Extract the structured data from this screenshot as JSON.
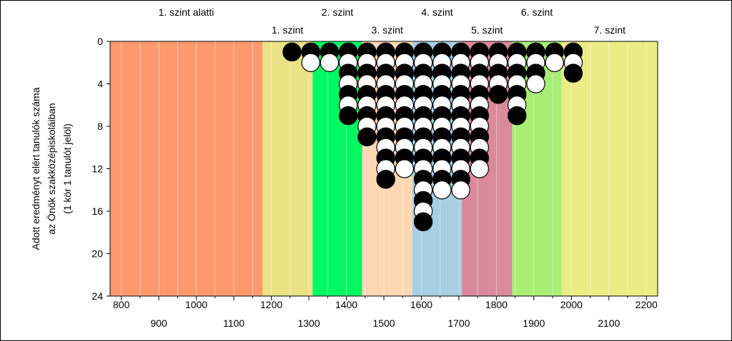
{
  "chart_data": {
    "type": "scatter",
    "ylabel_lines": [
      "Adott eredményt elért tanulók száma",
      "az Önök szakközépiskoláiban",
      "(1 kör 1 tanulót jelöl)"
    ],
    "xlim": [
      770,
      2230
    ],
    "ylim": [
      0,
      24
    ],
    "y_inverted": true,
    "y_ticks": [
      0,
      4,
      8,
      12,
      16,
      20,
      24
    ],
    "x_ticks_row1": [
      800,
      1000,
      1200,
      1400,
      1600,
      1800,
      2000,
      2200
    ],
    "x_ticks_row2": [
      900,
      1100,
      1300,
      1500,
      1700,
      1900,
      2100
    ],
    "bands": [
      {
        "label": "1. szint alatti",
        "from": 770,
        "to": 1176,
        "color": "#fe9a6e",
        "label_row": "upper"
      },
      {
        "label": "1. szint",
        "from": 1176,
        "to": 1310,
        "color": "#ebe286",
        "label_row": "lower"
      },
      {
        "label": "2. szint",
        "from": 1310,
        "to": 1442,
        "color": "#00f862",
        "label_row": "upper"
      },
      {
        "label": "3. szint",
        "from": 1442,
        "to": 1576,
        "color": "#fed7b4",
        "label_row": "lower"
      },
      {
        "label": "4. szint",
        "from": 1576,
        "to": 1708,
        "color": "#a6d0e2",
        "label_row": "upper"
      },
      {
        "label": "5. szint",
        "from": 1708,
        "to": 1842,
        "color": "#d98b9b",
        "label_row": "lower"
      },
      {
        "label": "6. szint",
        "from": 1842,
        "to": 1974,
        "color": "#a9ee74",
        "label_row": "upper"
      },
      {
        "label": "7. szint",
        "from": 1974,
        "to": 2230,
        "color": "#ebec86",
        "label_row": "lower"
      }
    ],
    "column_step": 50,
    "columns": [
      {
        "x": 1255,
        "count": 1
      },
      {
        "x": 1305,
        "count": 2
      },
      {
        "x": 1355,
        "count": 2
      },
      {
        "x": 1405,
        "count": 7
      },
      {
        "x": 1455,
        "count": 9
      },
      {
        "x": 1505,
        "count": 13
      },
      {
        "x": 1555,
        "count": 12
      },
      {
        "x": 1605,
        "count": 17
      },
      {
        "x": 1655,
        "count": 14
      },
      {
        "x": 1705,
        "count": 14
      },
      {
        "x": 1755,
        "count": 12
      },
      {
        "x": 1805,
        "count": 5
      },
      {
        "x": 1855,
        "count": 7
      },
      {
        "x": 1905,
        "count": 4
      },
      {
        "x": 1955,
        "count": 2
      },
      {
        "x": 2005,
        "count": 3
      }
    ],
    "marker_style": "alternating black / white circles, first circle in each column black",
    "grid": true,
    "grid_x_step": 50
  }
}
